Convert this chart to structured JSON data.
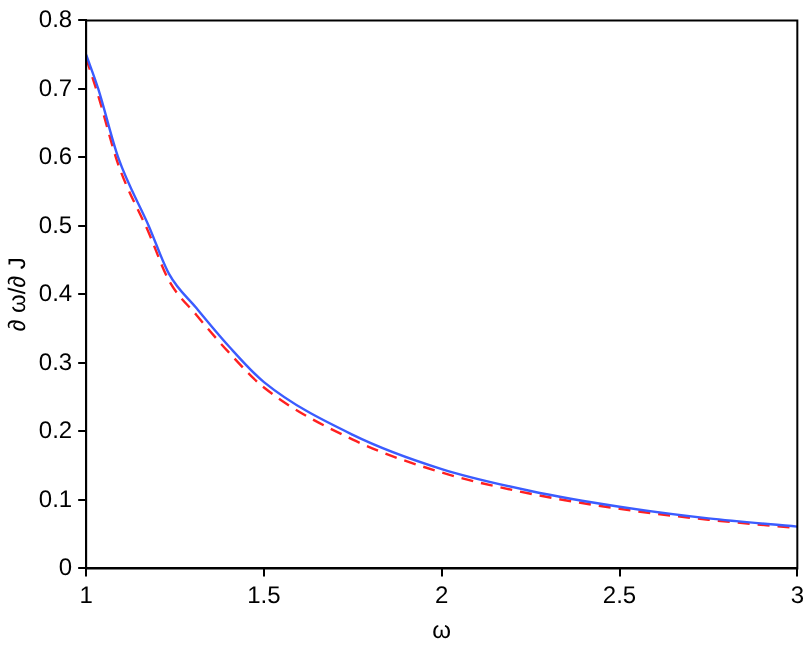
{
  "chart_data": {
    "type": "line",
    "xlabel": "ω",
    "ylabel": "∂ ω/∂ J",
    "xlim": [
      1,
      3
    ],
    "xticks": [
      1,
      1.5,
      2,
      2.5,
      3
    ],
    "ylim": [
      0,
      0.8
    ],
    "yticks": [
      0,
      0.1,
      0.2,
      0.3,
      0.4,
      0.5,
      0.6,
      0.7,
      0.8
    ],
    "grid": false,
    "legend": false,
    "marker": "none",
    "series": [
      {
        "color": "#3b5cff",
        "line_style": "solid",
        "x": [
          1,
          1.034,
          1.09,
          1.176,
          1.233,
          1.31,
          1.4,
          1.5,
          1.75,
          2,
          2.25,
          2.5,
          2.75,
          3
        ],
        "values": [
          0.75,
          0.7,
          0.6,
          0.5,
          0.43,
          0.38,
          0.325,
          0.272,
          0.195,
          0.145,
          0.113,
          0.09,
          0.073,
          0.061
        ]
      },
      {
        "color": "#ff2020",
        "line_style": "dashed",
        "x": [
          1,
          1.034,
          1.09,
          1.176,
          1.233,
          1.31,
          1.4,
          1.5,
          1.75,
          2,
          2.25,
          2.5,
          2.75,
          3
        ],
        "values": [
          0.745,
          0.69,
          0.59,
          0.49,
          0.42,
          0.37,
          0.316,
          0.264,
          0.188,
          0.14,
          0.109,
          0.087,
          0.071,
          0.059
        ]
      }
    ]
  }
}
